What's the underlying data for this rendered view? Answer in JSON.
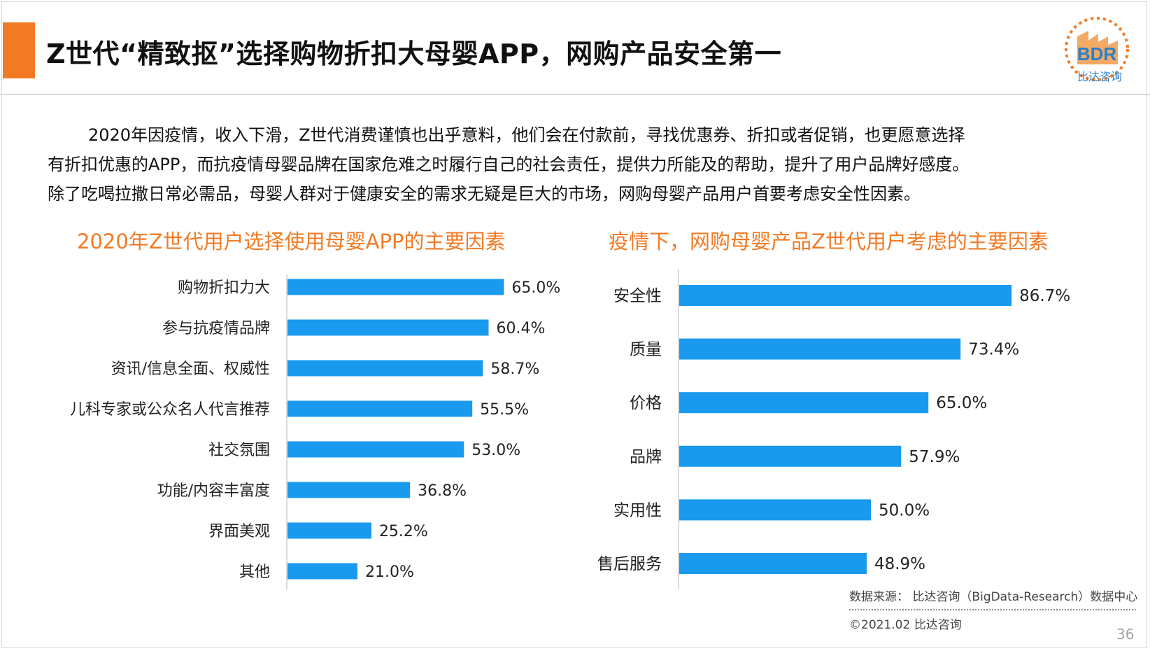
{
  "header": {
    "title": "Z世代“精致抠”选择购物折扣大母婴APP，网购产品安全第一",
    "logo_text": "BDR",
    "logo_subtitle": "比达咨询"
  },
  "intro": {
    "lines": [
      "2020年因疫情，收入下滑，Z世代消费谨慎也出乎意料，他们会在付款前，寻找优惠券、折扣或者促销，也更愿意选择",
      "有折扣优惠的APP，而抗疫情母婴品牌在国家危难之时履行自己的社会责任，提供力所能及的帮助，提升了用户品牌好感度。",
      "除了吃喝拉撒日常必需品，母婴人群对于健康安全的需求无疑是巨大的市场，网购母婴产品用户首要考虑安全性因素。"
    ]
  },
  "chart_data": [
    {
      "type": "bar",
      "orientation": "horizontal",
      "title": "2020年Z世代用户选择使用母婴APP的主要因素",
      "categories": [
        "购物折扣力大",
        "参与抗疫情品牌",
        "资讯/信息全面、权威性",
        "儿科专家或公众名人代言推荐",
        "社交氛围",
        "功能/内容丰富度",
        "界面美观",
        "其他"
      ],
      "values": [
        65.0,
        60.4,
        58.7,
        55.5,
        53.0,
        36.8,
        25.2,
        21.0
      ],
      "value_labels": [
        "65.0%",
        "60.4%",
        "58.7%",
        "55.5%",
        "53.0%",
        "36.8%",
        "25.2%",
        "21.0%"
      ],
      "unit": "%",
      "xlim": [
        0,
        100
      ],
      "bar_color": "#1a9aee",
      "grid": false
    },
    {
      "type": "bar",
      "orientation": "horizontal",
      "title": "疫情下，网购母婴产品Z世代用户考虑的主要因素",
      "categories": [
        "安全性",
        "质量",
        "价格",
        "品牌",
        "实用性",
        "售后服务"
      ],
      "values": [
        86.7,
        73.4,
        65.0,
        57.9,
        50.0,
        48.9
      ],
      "value_labels": [
        "86.7%",
        "73.4%",
        "65.0%",
        "57.9%",
        "50.0%",
        "48.9%"
      ],
      "unit": "%",
      "xlim": [
        0,
        100
      ],
      "bar_color": "#1a9aee",
      "grid": false
    }
  ],
  "footer": {
    "source": "数据来源： 比达咨询（BigData-Research）数据中心",
    "copyright": "©2021.02 比达咨询",
    "page_number": "36"
  },
  "colors": {
    "accent": "#f27a23",
    "bar": "#1a9aee",
    "logo_blue": "#2a80c8"
  }
}
